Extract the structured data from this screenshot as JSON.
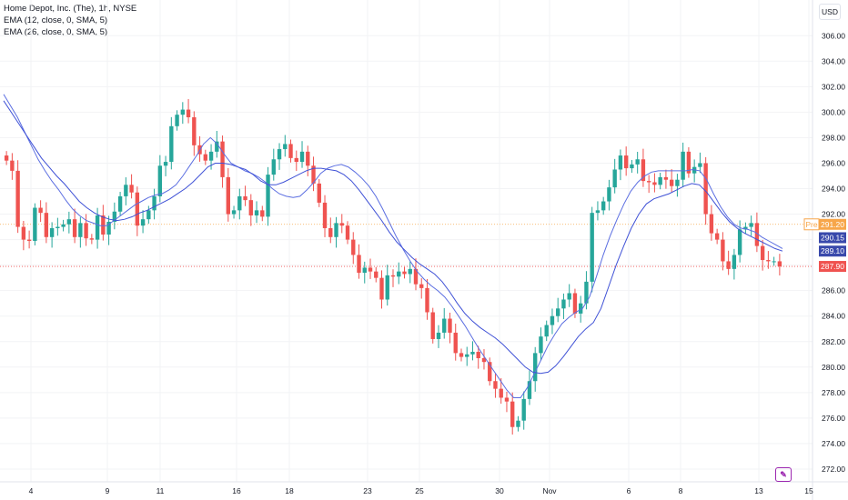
{
  "legend": {
    "title": "Home Depot, Inc. (The), 1h, NYSE",
    "ema1": "EMA (12, close, 0, SMA, 5)",
    "ema2": "EMA (26, close, 0, SMA, 5)"
  },
  "currency": "USD",
  "logo_icon": "tradingview-logo-icon",
  "colors": {
    "up": "#26a69a",
    "down": "#ef5350",
    "ema_fast": "#5b6ee1",
    "ema_slow": "#3f51d6",
    "pre_line": "#f7a64a",
    "last_line": "#ef5350"
  },
  "chart_data": {
    "type": "candlestick",
    "ylim": [
      271,
      308.8
    ],
    "yticks": [
      "272.00",
      "274.00",
      "276.00",
      "278.00",
      "280.00",
      "282.00",
      "284.00",
      "286.00",
      "288.00",
      "290.00",
      "292.00",
      "294.00",
      "296.00",
      "298.00",
      "300.00",
      "302.00",
      "304.00",
      "306.00"
    ],
    "xticks": [
      "4",
      "9",
      "11",
      "16",
      "18",
      "23",
      "25",
      "30",
      "Nov",
      "6",
      "8",
      "13",
      "15"
    ],
    "price_labels": [
      {
        "prefix": "Pre",
        "value": "291.20",
        "kind": "pre"
      },
      {
        "prefix": "",
        "value": "290.15",
        "kind": "ema_fast"
      },
      {
        "prefix": "",
        "value": "289.10",
        "kind": "ema_slow"
      },
      {
        "prefix": "",
        "value": "287.90",
        "kind": "last"
      }
    ],
    "candles_close": [
      296.2,
      295.4,
      291.0,
      290.0,
      289.9,
      292.5,
      292.1,
      290.2,
      290.9,
      291.0,
      291.2,
      291.6,
      290.2,
      291.3,
      290.1,
      290.0,
      291.9,
      290.4,
      291.4,
      292.2,
      293.4,
      294.3,
      293.7,
      291.1,
      291.6,
      292.3,
      293.4,
      295.8,
      296.1,
      298.9,
      299.8,
      300.2,
      299.6,
      297.4,
      296.7,
      296.2,
      296.9,
      297.7,
      294.9,
      292.0,
      292.3,
      293.4,
      293.1,
      291.9,
      292.3,
      291.8,
      295.1,
      296.3,
      297.1,
      297.5,
      296.4,
      296.1,
      296.9,
      295.8,
      294.4,
      292.9,
      290.9,
      290.2,
      291.3,
      291.1,
      290.0,
      288.8,
      287.4,
      287.8,
      287.5,
      287.0,
      285.3,
      287.2,
      287.1,
      287.5,
      287.3,
      287.7,
      286.5,
      286.2,
      284.3,
      282.2,
      282.7,
      283.8,
      282.7,
      281.1,
      280.8,
      281.0,
      281.2,
      280.7,
      280.4,
      278.9,
      278.3,
      277.6,
      277.3,
      275.3,
      275.8,
      277.5,
      278.9,
      281.1,
      282.4,
      283.3,
      284.0,
      284.6,
      285.3,
      285.8,
      284.2,
      285.0,
      286.7,
      292.1,
      292.3,
      293.0,
      294.1,
      295.5,
      296.6,
      295.6,
      295.9,
      296.3,
      294.6,
      294.5,
      294.3,
      294.9,
      294.7,
      294.2,
      294.7,
      296.9,
      295.2,
      295.7,
      296.0,
      292.0,
      290.5,
      290.0,
      288.3,
      287.7,
      288.8,
      290.8,
      291.0,
      291.3,
      289.5,
      288.4,
      288.3,
      288.3,
      287.9
    ],
    "ema_fast": [
      301.4,
      300.5,
      299.6,
      298.5,
      297.4,
      296.3,
      295.4,
      294.6,
      293.9,
      293.1,
      292.4,
      291.9,
      291.5,
      291.3,
      291.1,
      291.1,
      291.5,
      291.9,
      292.3,
      292.7,
      293.0,
      293.3,
      293.5,
      293.6,
      293.9,
      294.3,
      295.0,
      295.8,
      296.6,
      297.5,
      298.0,
      297.5,
      296.7,
      296.0,
      295.7,
      295.4,
      295.2,
      294.9,
      294.5,
      294.0,
      293.6,
      293.4,
      293.3,
      293.4,
      293.9,
      294.5,
      295.2,
      295.6,
      295.8,
      295.9,
      295.7,
      295.3,
      294.8,
      294.2,
      293.4,
      292.4,
      291.3,
      290.2,
      289.2,
      288.3,
      287.5,
      286.9,
      286.4,
      286.0,
      285.5,
      284.8,
      284.0,
      283.2,
      282.3,
      281.4,
      280.6,
      279.8,
      279.0,
      278.2,
      277.6,
      277.6,
      278.4,
      279.5,
      280.6,
      281.7,
      282.6,
      283.4,
      283.9,
      284.3,
      284.6,
      285.5,
      287.1,
      288.8,
      290.3,
      291.6,
      292.8,
      293.8,
      294.5,
      295.0,
      295.3,
      295.4,
      295.4,
      295.4,
      295.4,
      295.4,
      295.5,
      295.4,
      294.7,
      293.6,
      292.6,
      291.8,
      291.2,
      290.9,
      290.8,
      290.6,
      290.2,
      289.9,
      289.6,
      289.3
    ],
    "ema_slow": [
      300.9,
      300.0,
      299.1,
      298.2,
      297.3,
      296.4,
      295.7,
      295.0,
      294.4,
      293.7,
      293.0,
      292.5,
      292.1,
      291.8,
      291.6,
      291.5,
      291.6,
      291.8,
      292.1,
      292.3,
      292.6,
      292.9,
      293.2,
      293.6,
      294.0,
      294.5,
      295.1,
      295.7,
      296.0,
      296.0,
      295.9,
      295.7,
      295.5,
      295.1,
      294.6,
      294.3,
      294.3,
      294.5,
      294.8,
      295.1,
      295.4,
      295.6,
      295.6,
      295.5,
      295.4,
      295.1,
      294.6,
      293.9,
      293.1,
      292.3,
      291.5,
      290.6,
      289.8,
      289.2,
      288.6,
      288.1,
      287.7,
      287.3,
      286.7,
      285.9,
      285.0,
      284.2,
      283.6,
      283.1,
      282.7,
      282.3,
      281.8,
      281.2,
      280.6,
      280.0,
      279.6,
      279.5,
      279.6,
      280.1,
      280.8,
      281.6,
      282.4,
      283.0,
      283.5,
      284.6,
      286.3,
      288.0,
      289.5,
      290.9,
      292.0,
      292.8,
      293.2,
      293.4,
      293.6,
      293.9,
      294.2,
      294.4,
      294.3,
      293.7,
      292.9,
      292.1,
      291.4,
      290.9,
      290.5,
      290.2,
      289.9,
      289.6,
      289.3,
      289.1
    ]
  }
}
